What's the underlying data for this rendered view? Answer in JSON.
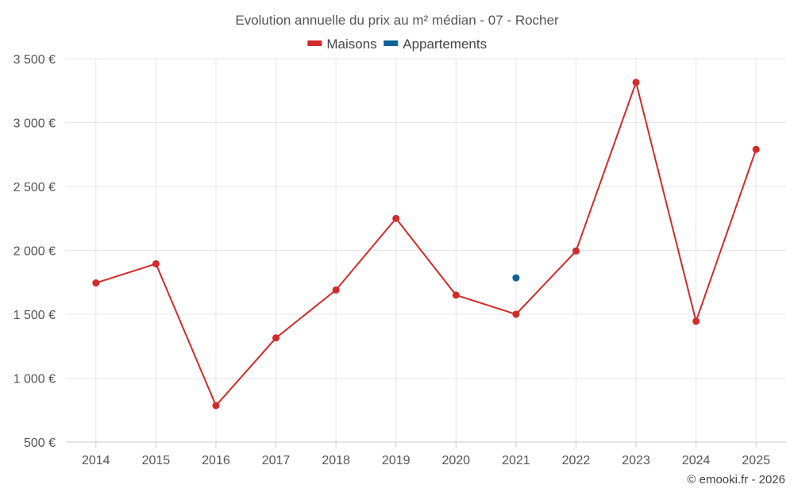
{
  "chart_data": {
    "type": "line",
    "title": "Evolution annuelle du prix au m² médian - 07 - Rocher",
    "categories": [
      "2014",
      "2015",
      "2016",
      "2017",
      "2018",
      "2019",
      "2020",
      "2021",
      "2022",
      "2023",
      "2024",
      "2025"
    ],
    "series": [
      {
        "name": "Maisons",
        "color": "#d32a2a",
        "values": [
          1745,
          1895,
          785,
          1315,
          1690,
          2250,
          1650,
          1500,
          1995,
          3315,
          1445,
          2790
        ]
      },
      {
        "name": "Appartements",
        "color": "#0d629b",
        "values": [
          null,
          null,
          null,
          null,
          null,
          null,
          null,
          1785,
          null,
          null,
          null,
          null
        ]
      }
    ],
    "y_ticks": [
      500,
      1000,
      1500,
      2000,
      2500,
      3000,
      3500
    ],
    "y_tick_labels": [
      "500 €",
      "1 000 €",
      "1 500 €",
      "2 000 €",
      "2 500 €",
      "3 000 €",
      "3 500 €"
    ],
    "ylim": [
      500,
      3500
    ],
    "xlabel": "",
    "ylabel": "",
    "grid": true,
    "legend_position": "top-center"
  },
  "credit": "© emooki.fr - 2026"
}
